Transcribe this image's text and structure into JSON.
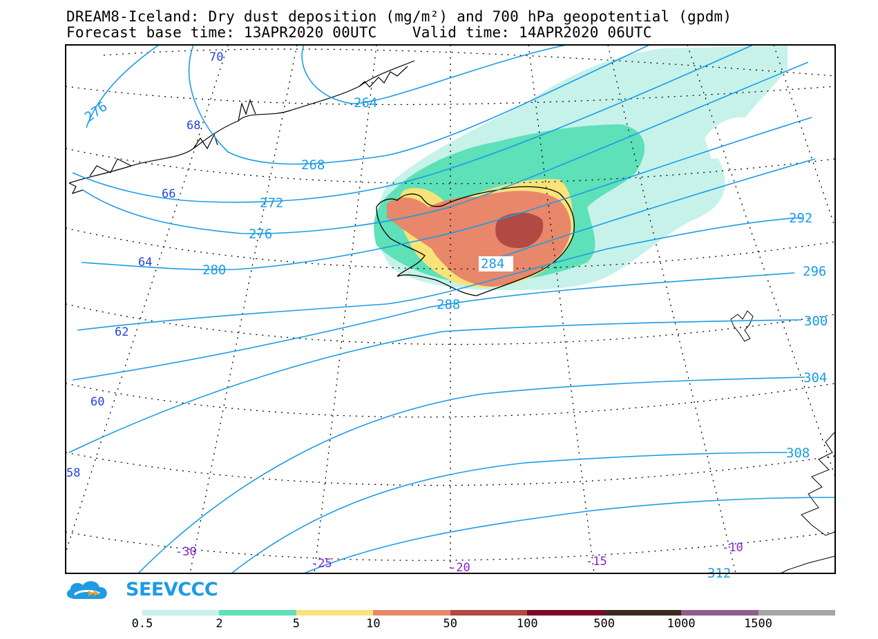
{
  "header": {
    "title_line1": "DREAM8-Iceland: Dry dust deposition (mg/m²) and 700 hPa geopotential (gpdm)",
    "title_line2": "Forecast base time: 13APR2020 00UTC    Valid time: 14APR2020 06UTC"
  },
  "map": {
    "region": "Iceland and North Atlantic",
    "contour_color": "#1a9ce6",
    "contour_labels": [
      "264",
      "268",
      "272",
      "276",
      "280",
      "284",
      "288",
      "292",
      "296",
      "300",
      "304",
      "308",
      "312",
      "276"
    ],
    "latitude_labels": [
      "70",
      "68",
      "66",
      "64",
      "62",
      "60",
      "58"
    ],
    "longitude_labels": [
      "-30",
      "-25",
      "-20",
      "-15",
      "-10"
    ],
    "latitude_label_color": "#2244dd",
    "longitude_label_color": "#8a1fd0"
  },
  "logo": {
    "text": "SEEVCCC",
    "color": "#1e9be3"
  },
  "legend": {
    "colors": [
      "#c6f2ea",
      "#5ee0b8",
      "#f7e37a",
      "#e8876a",
      "#b04a42",
      "#7a0a28",
      "#3a2a1e",
      "#8e5e8e",
      "#a6a6a6"
    ],
    "tick_labels": [
      "0.5",
      "2",
      "5",
      "10",
      "50",
      "100",
      "500",
      "1000",
      "1500"
    ]
  }
}
